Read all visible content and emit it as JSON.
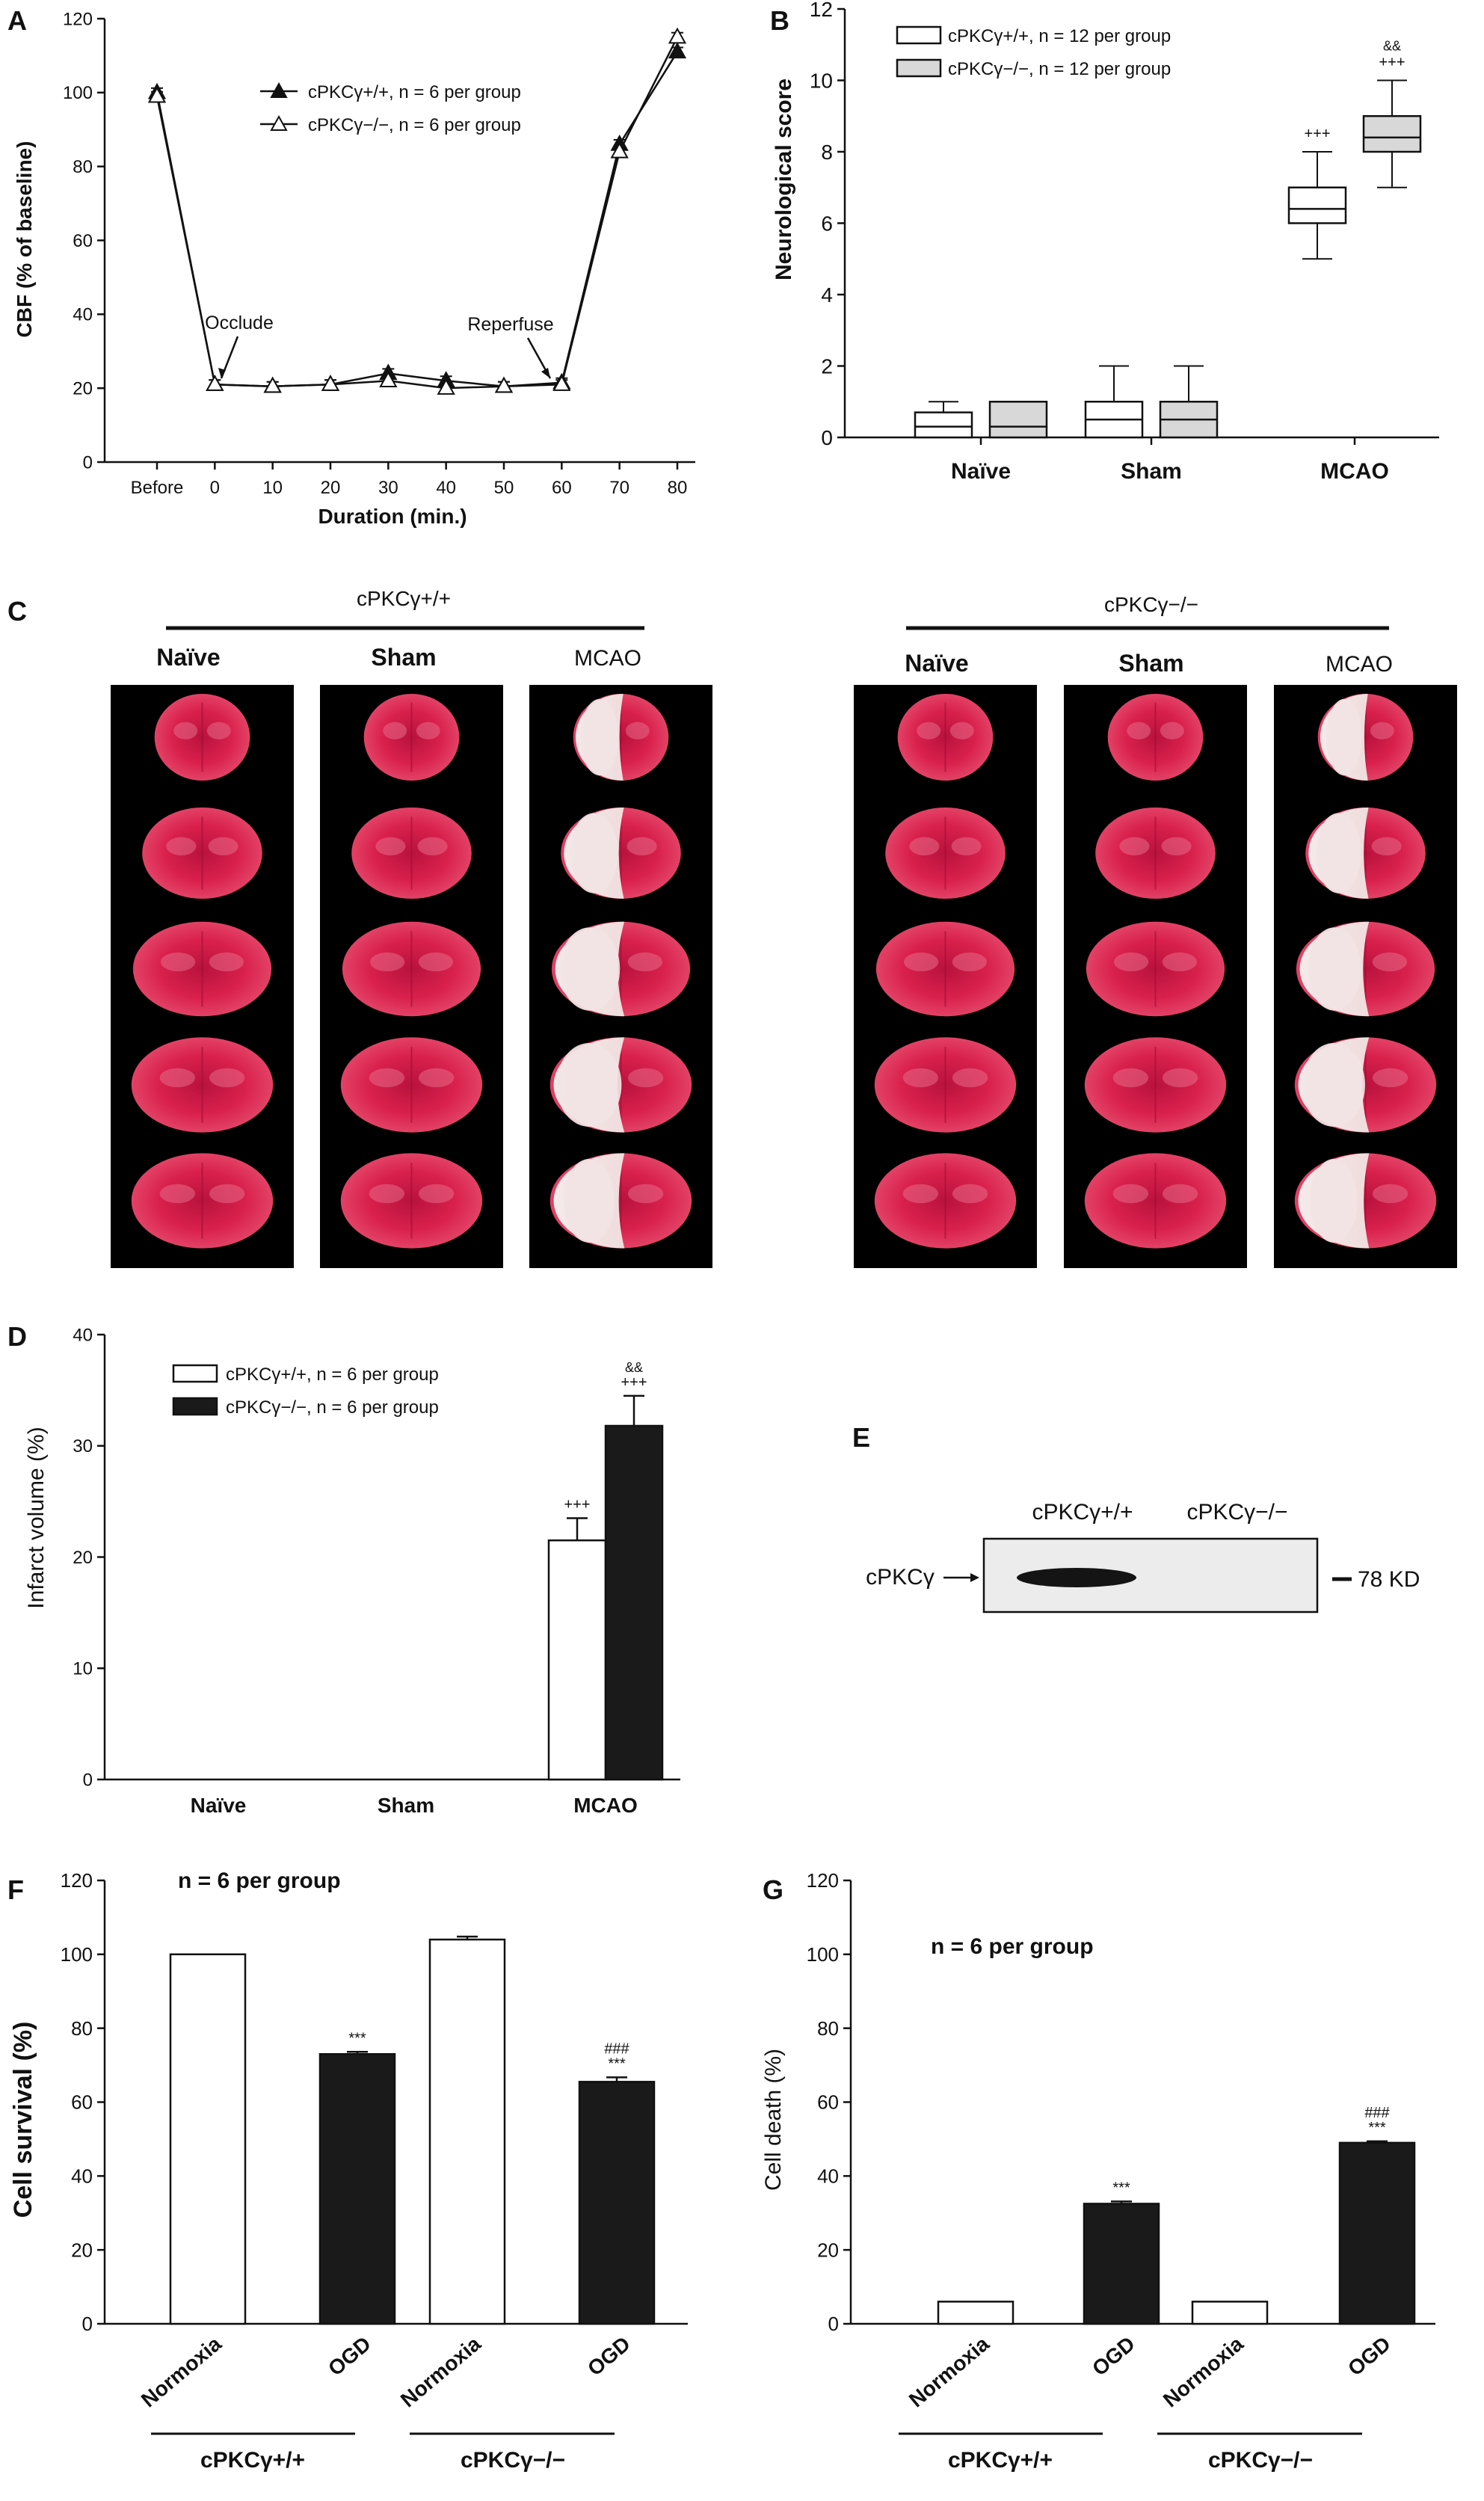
{
  "panels": {
    "A": {
      "letter": "A",
      "ylabel": "CBF (% of baseline)",
      "xlabel": "Duration (min.)",
      "annotations": [
        "Occlude",
        "Reperfuse"
      ],
      "legend": [
        {
          "label": "cPKCγ+/+, n = 6 per group"
        },
        {
          "label": "cPKCγ−/−, n = 6 per group"
        }
      ]
    },
    "B": {
      "letter": "B",
      "ylabel": "Neurological score",
      "legend": [
        {
          "label": "cPKCγ+/+, n = 12 per group"
        },
        {
          "label": "cPKCγ−/−, n = 12 per group"
        }
      ]
    },
    "C": {
      "letter": "C",
      "groups": [
        "cPKCγ+/+",
        "cPKCγ−/−"
      ],
      "columns": [
        "Naïve",
        "Sham",
        "MCAO"
      ]
    },
    "D": {
      "letter": "D",
      "ylabel": "Infarct volume (%)",
      "legend": [
        {
          "label": "cPKCγ+/+, n = 6 per group"
        },
        {
          "label": "cPKCγ−/−, n = 6 per group"
        }
      ]
    },
    "E": {
      "letter": "E",
      "lanes": [
        "cPKCγ+/+",
        "cPKCγ−/−"
      ],
      "band_label": "cPKCγ",
      "marker": "78 KD"
    },
    "F": {
      "letter": "F",
      "ylabel": "Cell survival (%)",
      "note": "n = 6 per group",
      "groups": [
        "cPKCγ+/+",
        "cPKCγ−/−"
      ]
    },
    "G": {
      "letter": "G",
      "ylabel": "Cell death (%)",
      "note": "n = 6 per group",
      "groups": [
        "cPKCγ+/+",
        "cPKCγ−/−"
      ]
    }
  },
  "colors": {
    "open": "#ffffff",
    "grey": "#d8d8d8",
    "black": "#1a1a1a",
    "stain_red": "#d9204c",
    "stain_white": "#f1e6e6",
    "gel_bg": "#efefef"
  },
  "chart_data": [
    {
      "id": "A",
      "type": "line",
      "title": "",
      "xlabel": "Duration (min.)",
      "ylabel": "CBF (% of baseline)",
      "categories": [
        "Before",
        "0",
        "10",
        "20",
        "30",
        "40",
        "50",
        "60",
        "70",
        "80"
      ],
      "ylim": [
        0,
        120
      ],
      "yticks": [
        0,
        20,
        40,
        60,
        80,
        100,
        120
      ],
      "series": [
        {
          "name": "cPKCγ+/+, n = 6 per group",
          "marker": "filled-triangle",
          "values": [
            100,
            21,
            20.5,
            21,
            24,
            22,
            20.5,
            21.5,
            86,
            111
          ]
        },
        {
          "name": "cPKCγ−/−, n = 6 per group",
          "marker": "open-triangle",
          "values": [
            99,
            21,
            20.5,
            21,
            22,
            20,
            20.5,
            21,
            84,
            115
          ]
        }
      ],
      "legend_position": "top-center",
      "annotations": [
        {
          "text": "Occlude",
          "x": "0"
        },
        {
          "text": "Reperfuse",
          "x": "60"
        }
      ]
    },
    {
      "id": "B",
      "type": "box",
      "title": "",
      "xlabel": "",
      "ylabel": "Neurological score",
      "categories": [
        "Naïve",
        "Sham",
        "MCAO"
      ],
      "ylim": [
        0,
        12
      ],
      "yticks": [
        0,
        2,
        4,
        6,
        8,
        10,
        12
      ],
      "series": [
        {
          "name": "cPKCγ+/+, n = 12 per group",
          "fill": "open",
          "boxes": [
            {
              "min": 0,
              "q1": 0,
              "median": 0.3,
              "q3": 0.7,
              "max": 1
            },
            {
              "min": 0,
              "q1": 0,
              "median": 0.5,
              "q3": 1,
              "max": 2
            },
            {
              "min": 5,
              "q1": 6,
              "median": 6.4,
              "q3": 7,
              "max": 8
            }
          ]
        },
        {
          "name": "cPKCγ−/−, n = 12 per group",
          "fill": "grey",
          "boxes": [
            {
              "min": 0,
              "q1": 0,
              "median": 0.3,
              "q3": 1,
              "max": 1
            },
            {
              "min": 0,
              "q1": 0,
              "median": 0.5,
              "q3": 1,
              "max": 2
            },
            {
              "min": 7,
              "q1": 8,
              "median": 8.4,
              "q3": 9,
              "max": 10
            }
          ]
        }
      ],
      "significance": [
        {
          "category": "MCAO",
          "series": 0,
          "marks": [
            "+++"
          ]
        },
        {
          "category": "MCAO",
          "series": 1,
          "marks": [
            "&&",
            "+++"
          ]
        }
      ],
      "legend_position": "top-left"
    },
    {
      "id": "D",
      "type": "bar",
      "title": "",
      "xlabel": "",
      "ylabel": "Infarct volume (%)",
      "categories": [
        "Naïve",
        "Sham",
        "MCAO"
      ],
      "ylim": [
        0,
        40
      ],
      "yticks": [
        0,
        10,
        20,
        30,
        40
      ],
      "series": [
        {
          "name": "cPKCγ+/+, n = 6 per group",
          "fill": "open",
          "values": [
            0,
            0,
            21.5
          ],
          "errors": [
            0,
            0,
            2
          ]
        },
        {
          "name": "cPKCγ−/−, n = 6 per group",
          "fill": "black",
          "values": [
            0,
            0,
            31.8
          ],
          "errors": [
            0,
            0,
            2.7
          ]
        }
      ],
      "significance": [
        {
          "category": "MCAO",
          "series": 0,
          "marks": [
            "+++"
          ]
        },
        {
          "category": "MCAO",
          "series": 1,
          "marks": [
            "&&",
            "+++"
          ]
        }
      ],
      "legend_position": "top-left"
    },
    {
      "id": "F",
      "type": "bar",
      "title": "",
      "xlabel": "",
      "ylabel": "Cell survival (%)",
      "categories": [
        "Normoxia",
        "OGD",
        "Normoxia",
        "OGD"
      ],
      "groups": [
        {
          "label": "cPKCγ+/+",
          "categories": [
            0,
            1
          ]
        },
        {
          "label": "cPKCγ−/−",
          "categories": [
            2,
            3
          ]
        }
      ],
      "fills": [
        "open",
        "black",
        "open",
        "black"
      ],
      "values": [
        100,
        73,
        104,
        65.5
      ],
      "errors": [
        0,
        0.6,
        0.8,
        1.2
      ],
      "ylim": [
        0,
        120
      ],
      "yticks": [
        0,
        20,
        40,
        60,
        80,
        100,
        120
      ],
      "significance": [
        [],
        [
          "***"
        ],
        [],
        [
          "###",
          "***"
        ]
      ]
    },
    {
      "id": "G",
      "type": "bar",
      "title": "",
      "xlabel": "",
      "ylabel": "Cell death (%)",
      "categories": [
        "Normoxia",
        "OGD",
        "Normoxia",
        "OGD"
      ],
      "groups": [
        {
          "label": "cPKCγ+/+",
          "categories": [
            0,
            1
          ]
        },
        {
          "label": "cPKCγ−/−",
          "categories": [
            2,
            3
          ]
        }
      ],
      "fills": [
        "open",
        "black",
        "open",
        "black"
      ],
      "values": [
        6,
        32.5,
        6,
        49
      ],
      "errors": [
        0,
        0.6,
        0,
        0.4
      ],
      "ylim": [
        0,
        120
      ],
      "yticks": [
        0,
        20,
        40,
        60,
        80,
        100,
        120
      ],
      "significance": [
        [],
        [
          "***"
        ],
        [],
        [
          "###",
          "***"
        ]
      ]
    }
  ]
}
